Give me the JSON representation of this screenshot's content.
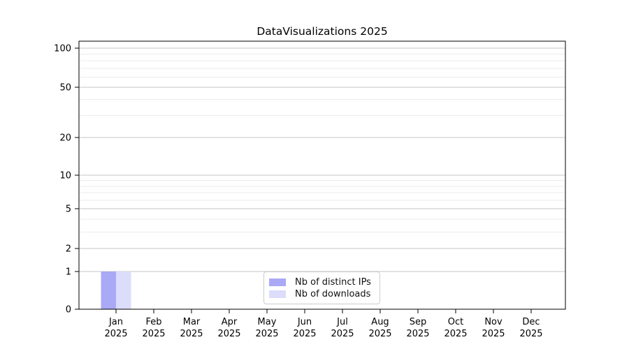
{
  "chart_data": {
    "type": "bar",
    "title": "DataVisualizations 2025",
    "categories": [
      "Jan",
      "Feb",
      "Mar",
      "Apr",
      "May",
      "Jun",
      "Jul",
      "Aug",
      "Sep",
      "Oct",
      "Nov",
      "Dec"
    ],
    "xtick_year": "2025",
    "series": [
      {
        "name": "Nb of distinct IPs",
        "color": "#a9a9f6",
        "values": [
          1,
          0,
          0,
          0,
          0,
          0,
          0,
          0,
          0,
          0,
          0,
          0
        ]
      },
      {
        "name": "Nb of downloads",
        "color": "#dcddfa",
        "values": [
          1,
          0,
          0,
          0,
          0,
          0,
          0,
          0,
          0,
          0,
          0,
          0
        ]
      }
    ],
    "yscale": "log1p",
    "ylim": [
      0,
      100
    ],
    "yticks": [
      0,
      1,
      2,
      5,
      10,
      20,
      50,
      100
    ],
    "ytick_labels": [
      "0",
      "1",
      "2",
      "5",
      "10",
      "20",
      "50",
      "100"
    ],
    "minor_yticks": [
      3,
      4,
      6,
      7,
      8,
      9,
      30,
      40,
      60,
      70,
      80,
      90
    ],
    "grid": "horizontal major+minor",
    "legend_position": "lower center"
  },
  "colors": {
    "background": "#ffffff",
    "axis": "#000000",
    "major_grid": "#c6c6c6",
    "minor_grid": "#ebebeb",
    "legend_border": "#cccccc",
    "text": "#000000"
  }
}
